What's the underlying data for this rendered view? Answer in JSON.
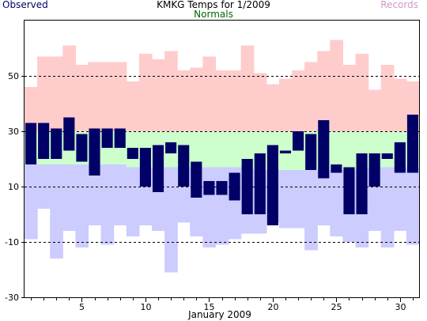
{
  "chart_data": {
    "type": "bar",
    "title": "KMKG Temps for 1/2009",
    "xlabel": "January 2009",
    "ylabel": "",
    "ylim": [
      -30,
      70
    ],
    "y_ticks": [
      50,
      30,
      10,
      -10,
      -30
    ],
    "x_ticks": [
      5,
      10,
      15,
      20,
      25,
      30
    ],
    "grid": "dashed lines at 50, 30, 10, -10",
    "legend": [
      {
        "label": "Observed",
        "color": "#000066",
        "position": "top-left"
      },
      {
        "label": "Normals",
        "color": "#006600",
        "position": "top-center"
      },
      {
        "label": "Records",
        "color": "#cc99cc",
        "position": "top-right"
      }
    ],
    "days": [
      1,
      2,
      3,
      4,
      5,
      6,
      7,
      8,
      9,
      10,
      11,
      12,
      13,
      14,
      15,
      16,
      17,
      18,
      19,
      20,
      21,
      22,
      23,
      24,
      25,
      26,
      27,
      28,
      29,
      30,
      31
    ],
    "series": [
      {
        "name": "Records",
        "high": [
          46,
          57,
          57,
          61,
          54,
          55,
          55,
          55,
          48,
          58,
          56,
          59,
          52,
          53,
          57,
          52,
          52,
          61,
          51,
          47,
          49,
          52,
          55,
          59,
          63,
          54,
          58,
          45,
          54,
          49,
          48
        ],
        "low": [
          -9,
          2,
          -16,
          -6,
          -12,
          -4,
          -11,
          -4,
          -8,
          -4,
          -6,
          -21,
          -3,
          -8,
          -12,
          -11,
          -9,
          -7,
          -7,
          -3,
          -5,
          -5,
          -13,
          -4,
          -8,
          -10,
          -12,
          -6,
          -12,
          -6,
          -11
        ]
      },
      {
        "name": "Normals",
        "high": [
          30,
          30,
          30,
          30,
          30,
          30,
          30,
          30,
          30,
          30,
          30,
          30,
          30,
          30,
          30,
          30,
          30,
          30,
          30,
          30,
          30,
          30,
          30,
          30,
          30,
          30,
          30,
          30,
          30,
          30,
          30
        ],
        "low": [
          18,
          18,
          18,
          18,
          18,
          18,
          18,
          18,
          17,
          17,
          17,
          17,
          17,
          17,
          17,
          17,
          17,
          17,
          16,
          16,
          16,
          16,
          16,
          16,
          16,
          16,
          17,
          17,
          17,
          17,
          17
        ]
      },
      {
        "name": "Observed",
        "high": [
          33,
          33,
          31,
          35,
          29,
          31,
          31,
          31,
          24,
          24,
          25,
          26,
          25,
          19,
          12,
          12,
          15,
          20,
          22,
          25,
          23,
          30,
          29,
          34,
          18,
          17,
          22,
          22,
          22,
          26,
          36
        ],
        "low": [
          18,
          20,
          20,
          23,
          19,
          14,
          24,
          24,
          20,
          10,
          8,
          22,
          10,
          6,
          7,
          7,
          5,
          0,
          0,
          -4,
          22,
          23,
          16,
          13,
          15,
          0,
          0,
          10,
          20,
          15,
          15
        ]
      }
    ]
  }
}
